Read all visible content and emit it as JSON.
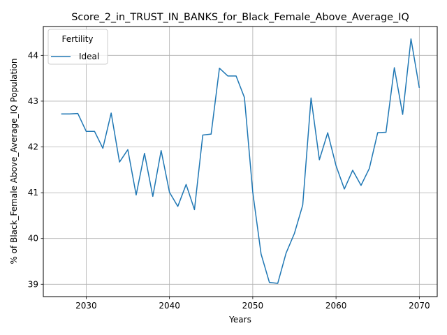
{
  "chart_data": {
    "type": "line",
    "title": "Score_2_in_TRUST_IN_BANKS_for_Black_Female_Above_Average_IQ",
    "xlabel": "Years",
    "ylabel": "% of Black_Female Above_Average_IQ Population",
    "xlim": [
      2024.85,
      2072.15
    ],
    "ylim": [
      38.73,
      44.63
    ],
    "xticks": [
      2030,
      2040,
      2050,
      2060,
      2070
    ],
    "yticks": [
      39,
      40,
      41,
      42,
      43,
      44
    ],
    "grid": true,
    "legend": {
      "title": "Fertility",
      "placement": "top-left"
    },
    "series": [
      {
        "name": "Ideal",
        "color": "#1f77b4",
        "x": [
          2027,
          2028,
          2029,
          2030,
          2031,
          2032,
          2033,
          2034,
          2035,
          2036,
          2037,
          2038,
          2039,
          2040,
          2041,
          2042,
          2043,
          2044,
          2045,
          2046,
          2047,
          2048,
          2049,
          2050,
          2051,
          2052,
          2053,
          2054,
          2055,
          2056,
          2057,
          2058,
          2059,
          2060,
          2061,
          2062,
          2063,
          2064,
          2065,
          2066,
          2067,
          2068,
          2069,
          2070
        ],
        "values": [
          42.72,
          42.72,
          42.73,
          42.34,
          42.34,
          41.97,
          42.74,
          41.67,
          41.94,
          40.95,
          41.86,
          40.92,
          41.92,
          41.01,
          40.7,
          41.18,
          40.63,
          42.26,
          42.28,
          43.72,
          43.55,
          43.55,
          43.08,
          41.01,
          39.66,
          39.04,
          39.02,
          39.68,
          40.11,
          40.73,
          43.07,
          41.72,
          42.31,
          41.59,
          41.08,
          41.49,
          41.16,
          41.53,
          42.31,
          42.32,
          43.73,
          42.71,
          44.36,
          43.29
        ]
      }
    ]
  }
}
